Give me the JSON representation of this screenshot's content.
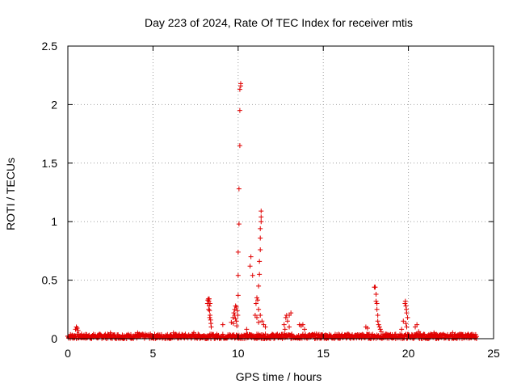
{
  "chart_data": {
    "type": "scatter",
    "title": "Day 223 of 2024, Rate Of TEC Index for receiver mtis",
    "xlabel": "GPS time / hours",
    "ylabel": "ROTI / TECUs",
    "xlim": [
      0,
      25
    ],
    "ylim": [
      0,
      2.5
    ],
    "xticks": [
      0,
      5,
      10,
      15,
      20,
      25
    ],
    "yticks": [
      0,
      0.5,
      1,
      1.5,
      2,
      2.5
    ],
    "xtick_labels": [
      "0",
      "5",
      "10",
      "15",
      "20",
      "25"
    ],
    "ytick_labels": [
      "0",
      "0.5",
      "1",
      "1.5",
      "2",
      "2.5"
    ],
    "grid": true,
    "marker": "+",
    "color": "#e00000",
    "baseline": {
      "x_start": 0,
      "x_end": 24,
      "step": 0.05,
      "min": 0.0,
      "max": 0.04
    },
    "series": [
      {
        "name": "ROTI",
        "points": [
          [
            0.45,
            0.08
          ],
          [
            0.5,
            0.1
          ],
          [
            0.55,
            0.09
          ],
          [
            0.6,
            0.07
          ],
          [
            2.5,
            0.05
          ],
          [
            4.1,
            0.05
          ],
          [
            6.2,
            0.05
          ],
          [
            7.4,
            0.05
          ],
          [
            8.2,
            0.3
          ],
          [
            8.22,
            0.33
          ],
          [
            8.25,
            0.34
          ],
          [
            8.28,
            0.32
          ],
          [
            8.3,
            0.28
          ],
          [
            8.32,
            0.24
          ],
          [
            8.35,
            0.2
          ],
          [
            8.38,
            0.16
          ],
          [
            8.4,
            0.13
          ],
          [
            8.42,
            0.1
          ],
          [
            8.3,
            0.34
          ],
          [
            8.35,
            0.3
          ],
          [
            8.27,
            0.25
          ],
          [
            8.33,
            0.18
          ],
          [
            9.1,
            0.12
          ],
          [
            9.6,
            0.14
          ],
          [
            9.7,
            0.18
          ],
          [
            9.75,
            0.22
          ],
          [
            9.8,
            0.25
          ],
          [
            9.85,
            0.28
          ],
          [
            9.9,
            0.27
          ],
          [
            9.95,
            0.24
          ],
          [
            9.8,
            0.2
          ],
          [
            9.85,
            0.17
          ],
          [
            9.9,
            0.15
          ],
          [
            9.72,
            0.13
          ],
          [
            9.98,
            0.2
          ],
          [
            9.92,
            0.11
          ],
          [
            10.0,
            0.37
          ],
          [
            10.0,
            0.54
          ],
          [
            10.0,
            0.74
          ],
          [
            10.05,
            0.98
          ],
          [
            10.05,
            1.28
          ],
          [
            10.1,
            1.65
          ],
          [
            10.1,
            1.95
          ],
          [
            10.1,
            2.13
          ],
          [
            10.15,
            2.16
          ],
          [
            10.15,
            2.18
          ],
          [
            10.5,
            0.08
          ],
          [
            10.7,
            0.62
          ],
          [
            10.75,
            0.7
          ],
          [
            10.85,
            0.54
          ],
          [
            11.0,
            0.2
          ],
          [
            11.05,
            0.3
          ],
          [
            11.1,
            0.35
          ],
          [
            11.15,
            0.33
          ],
          [
            11.2,
            0.25
          ],
          [
            11.2,
            0.45
          ],
          [
            11.25,
            0.55
          ],
          [
            11.25,
            0.66
          ],
          [
            11.3,
            0.76
          ],
          [
            11.3,
            0.86
          ],
          [
            11.3,
            0.94
          ],
          [
            11.35,
            1.0
          ],
          [
            11.35,
            1.04
          ],
          [
            11.35,
            1.09
          ],
          [
            11.4,
            0.15
          ],
          [
            11.5,
            0.12
          ],
          [
            11.6,
            0.1
          ],
          [
            11.1,
            0.18
          ],
          [
            11.3,
            0.2
          ],
          [
            11.2,
            0.14
          ],
          [
            12.7,
            0.12
          ],
          [
            12.8,
            0.18
          ],
          [
            12.85,
            0.2
          ],
          [
            12.9,
            0.15
          ],
          [
            13.0,
            0.2
          ],
          [
            13.1,
            0.22
          ],
          [
            13.0,
            0.1
          ],
          [
            12.75,
            0.08
          ],
          [
            13.6,
            0.12
          ],
          [
            13.7,
            0.11
          ],
          [
            13.8,
            0.12
          ],
          [
            13.9,
            0.08
          ],
          [
            17.5,
            0.1
          ],
          [
            17.6,
            0.09
          ],
          [
            18.0,
            0.44
          ],
          [
            18.05,
            0.44
          ],
          [
            18.1,
            0.38
          ],
          [
            18.1,
            0.32
          ],
          [
            18.15,
            0.3
          ],
          [
            18.15,
            0.25
          ],
          [
            18.2,
            0.2
          ],
          [
            18.2,
            0.15
          ],
          [
            18.25,
            0.12
          ],
          [
            18.3,
            0.1
          ],
          [
            18.35,
            0.08
          ],
          [
            18.4,
            0.06
          ],
          [
            19.6,
            0.08
          ],
          [
            19.7,
            0.15
          ],
          [
            19.8,
            0.3
          ],
          [
            19.82,
            0.32
          ],
          [
            19.85,
            0.28
          ],
          [
            19.88,
            0.25
          ],
          [
            19.9,
            0.22
          ],
          [
            19.95,
            0.18
          ],
          [
            19.85,
            0.13
          ],
          [
            19.9,
            0.1
          ],
          [
            20.4,
            0.1
          ],
          [
            20.5,
            0.12
          ],
          [
            20.6,
            0.06
          ],
          [
            21.5,
            0.05
          ],
          [
            22.6,
            0.05
          ],
          [
            23.5,
            0.04
          ]
        ]
      }
    ]
  }
}
